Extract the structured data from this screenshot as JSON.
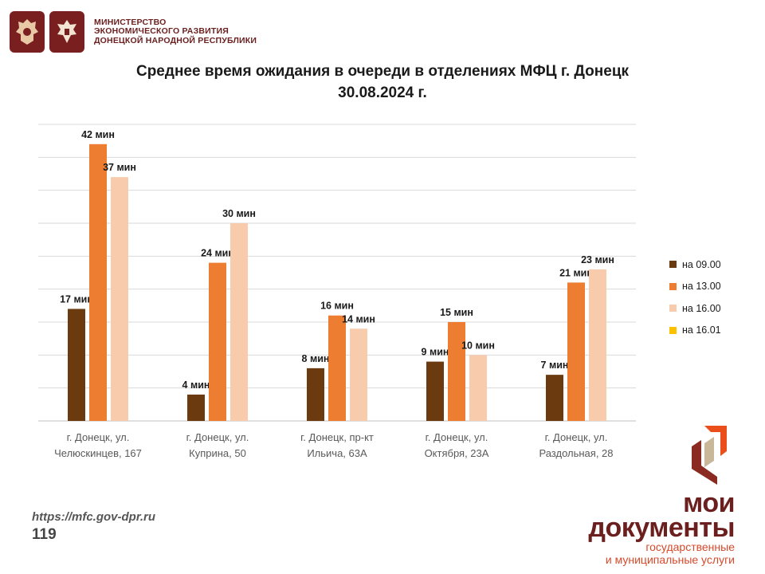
{
  "header": {
    "ministry_lines": [
      "МИНИСТЕРСТВО",
      "ЭКОНОМИЧЕСКОГО РАЗВИТИЯ",
      "ДОНЕЦКОЙ НАРОДНОЙ РЕСПУБЛИКИ"
    ],
    "emblem_icons": [
      "russia-coat-of-arms-icon",
      "dpr-coat-of-arms-icon"
    ],
    "emblem_color": "#7a1f1f"
  },
  "chart_data": {
    "type": "bar",
    "title": "Среднее время ожидания в очереди в отделениях МФЦ г. Донецк",
    "subtitle": "30.08.2024 г.",
    "categories": [
      [
        "г. Донецк, ул.",
        "Челюскинцев, 167"
      ],
      [
        "г. Донецк, ул.",
        "Куприна, 50"
      ],
      [
        "г. Донецк, пр-кт",
        "Ильича, 63А"
      ],
      [
        "г. Донецк, ул.",
        "Октября, 23А"
      ],
      [
        "г. Донецк, ул.",
        "Раздольная, 28"
      ]
    ],
    "series": [
      {
        "name": "на 09.00",
        "color": "#6b3a0f",
        "values": [
          17,
          4,
          8,
          9,
          7
        ]
      },
      {
        "name": "на 13.00",
        "color": "#ed7d31",
        "values": [
          42,
          24,
          16,
          15,
          21
        ]
      },
      {
        "name": "на 16.00",
        "color": "#f8cbad",
        "values": [
          37,
          30,
          14,
          10,
          23
        ]
      },
      {
        "name": "на 16.01",
        "color": "#ffc000",
        "values": [
          null,
          null,
          null,
          null,
          null
        ]
      }
    ],
    "data_label_suffix": " мин",
    "ylim": [
      0,
      45
    ],
    "grid": true,
    "legend_position": "right",
    "xlabel": "",
    "ylabel": ""
  },
  "footer": {
    "url": "https://mfc.gov-dpr.ru",
    "page_number": "119"
  },
  "brand": {
    "name_line1": "мои",
    "name_line2": "документы",
    "sub_line1": "государственные",
    "sub_line2": "и муниципальные услуги",
    "logo_icon": "moi-dokumenty-logo-icon",
    "colors": {
      "dark": "#6b1f1f",
      "accent": "#d64a2b"
    }
  }
}
